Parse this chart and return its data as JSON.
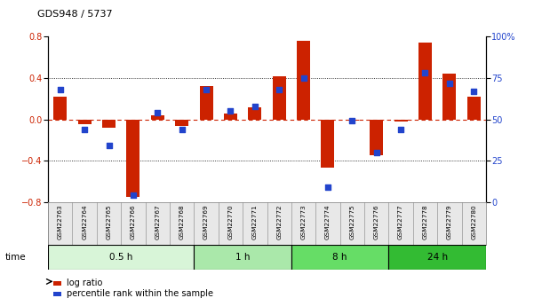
{
  "title": "GDS948 / 5737",
  "samples": [
    "GSM22763",
    "GSM22764",
    "GSM22765",
    "GSM22766",
    "GSM22767",
    "GSM22768",
    "GSM22769",
    "GSM22770",
    "GSM22771",
    "GSM22772",
    "GSM22773",
    "GSM22774",
    "GSM22775",
    "GSM22776",
    "GSM22777",
    "GSM22778",
    "GSM22779",
    "GSM22780"
  ],
  "log_ratio": [
    0.22,
    -0.05,
    -0.08,
    -0.75,
    0.04,
    -0.06,
    0.32,
    0.06,
    0.12,
    0.42,
    0.76,
    -0.47,
    -0.01,
    -0.35,
    -0.02,
    0.74,
    0.44,
    0.22
  ],
  "percentile": [
    68,
    44,
    34,
    4,
    54,
    44,
    68,
    55,
    58,
    68,
    75,
    9,
    49,
    30,
    44,
    78,
    72,
    67
  ],
  "bar_color": "#cc2200",
  "dot_color": "#2244cc",
  "bg_color": "#ffffff",
  "ylim": [
    -0.8,
    0.8
  ],
  "y2lim": [
    0,
    100
  ],
  "yticks": [
    -0.8,
    -0.4,
    0.0,
    0.4,
    0.8
  ],
  "y2ticks": [
    0,
    25,
    50,
    75,
    100
  ],
  "y2ticklabels": [
    "0",
    "25",
    "50",
    "75",
    "100%"
  ],
  "hlines": [
    0.4,
    -0.4
  ],
  "zero_line_color": "#cc2200",
  "groups": [
    {
      "label": "0.5 h",
      "start": 0,
      "end": 6,
      "color": "#d8f5d8"
    },
    {
      "label": "1 h",
      "start": 6,
      "end": 10,
      "color": "#aae8aa"
    },
    {
      "label": "8 h",
      "start": 10,
      "end": 14,
      "color": "#66dd66"
    },
    {
      "label": "24 h",
      "start": 14,
      "end": 18,
      "color": "#33bb33"
    }
  ],
  "bar_width": 0.55
}
